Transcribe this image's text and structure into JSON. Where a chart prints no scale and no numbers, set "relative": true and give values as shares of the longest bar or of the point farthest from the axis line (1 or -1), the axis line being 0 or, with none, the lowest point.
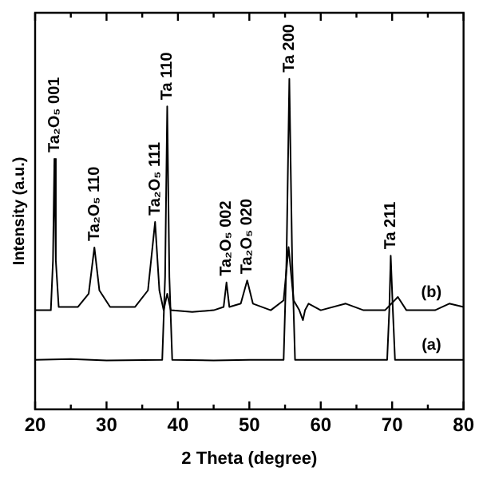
{
  "chart_data": {
    "type": "line",
    "relative": true,
    "xlabel": "2 Theta (degree)",
    "ylabel": "Intensity (a.u.)",
    "xlim": [
      20,
      80
    ],
    "xticks": [
      20,
      {
        "value": 25,
        "label": null
      },
      30,
      {
        "value": 35,
        "label": null
      },
      40,
      {
        "value": 45,
        "label": null
      },
      50,
      {
        "value": 55,
        "label": null
      },
      60,
      {
        "value": 65,
        "label": null
      },
      70,
      {
        "value": 75,
        "label": null
      },
      80
    ],
    "grid": false,
    "legend": false,
    "marker": "none",
    "line_style": "solid",
    "series": [
      {
        "name": "(a)",
        "color": "#000000",
        "x": [
          20,
          25,
          30,
          37.8,
          38.2,
          38.5,
          38.8,
          39.2,
          45,
          50,
          54.8,
          55.2,
          55.6,
          56.0,
          56.4,
          65,
          69.3,
          69.6,
          69.8,
          70.1,
          70.4,
          80
        ],
        "values": [
          0.15,
          0.152,
          0.148,
          0.15,
          0.4,
          0.917,
          0.4,
          0.15,
          0.148,
          0.15,
          0.15,
          0.45,
          1,
          0.45,
          0.15,
          0.15,
          0.15,
          0.3,
          0.465,
          0.3,
          0.15,
          0.15
        ]
      },
      {
        "name": "(b)",
        "color": "#000000",
        "x": [
          20,
          22.2,
          22.5,
          22.7,
          22.9,
          23.3,
          26,
          27.5,
          28.3,
          29,
          30.5,
          34,
          35.8,
          36.8,
          37.4,
          38,
          38.5,
          39,
          42,
          45,
          46.4,
          46.8,
          47.2,
          48.8,
          49.7,
          50.5,
          53,
          54.8,
          55.5,
          56.2,
          57,
          57.5,
          57.8,
          58.3,
          60,
          63.5,
          66,
          69,
          70.8,
          72,
          76,
          78,
          80
        ],
        "values": [
          0.3,
          0.3,
          0.45,
          0.758,
          0.45,
          0.31,
          0.31,
          0.35,
          0.49,
          0.36,
          0.31,
          0.31,
          0.36,
          0.567,
          0.36,
          0.3,
          0.35,
          0.3,
          0.295,
          0.3,
          0.31,
          0.384,
          0.31,
          0.32,
          0.39,
          0.32,
          0.3,
          0.33,
          0.491,
          0.33,
          0.3,
          0.27,
          0.3,
          0.32,
          0.3,
          0.32,
          0.3,
          0.3,
          0.34,
          0.3,
          0.3,
          0.32,
          0.31
        ]
      }
    ],
    "annotations": [
      {
        "text": "Ta₂O₅ 001",
        "x": 22.7,
        "y": 0.758
      },
      {
        "text": "Ta₂O₅ 110",
        "x": 28.3,
        "y": 0.49
      },
      {
        "text": "Ta₂O₅ 111",
        "x": 36.8,
        "y": 0.567
      },
      {
        "text": "Ta 110",
        "x": 38.5,
        "y": 0.917
      },
      {
        "text": "Ta₂O₅ 002",
        "x": 46.8,
        "y": 0.384
      },
      {
        "text": "Ta₂O₅ 020",
        "x": 49.7,
        "y": 0.39
      },
      {
        "text": "Ta 200",
        "x": 55.6,
        "y": 1
      },
      {
        "text": "Ta 211",
        "x": 69.8,
        "y": 0.465
      }
    ]
  }
}
